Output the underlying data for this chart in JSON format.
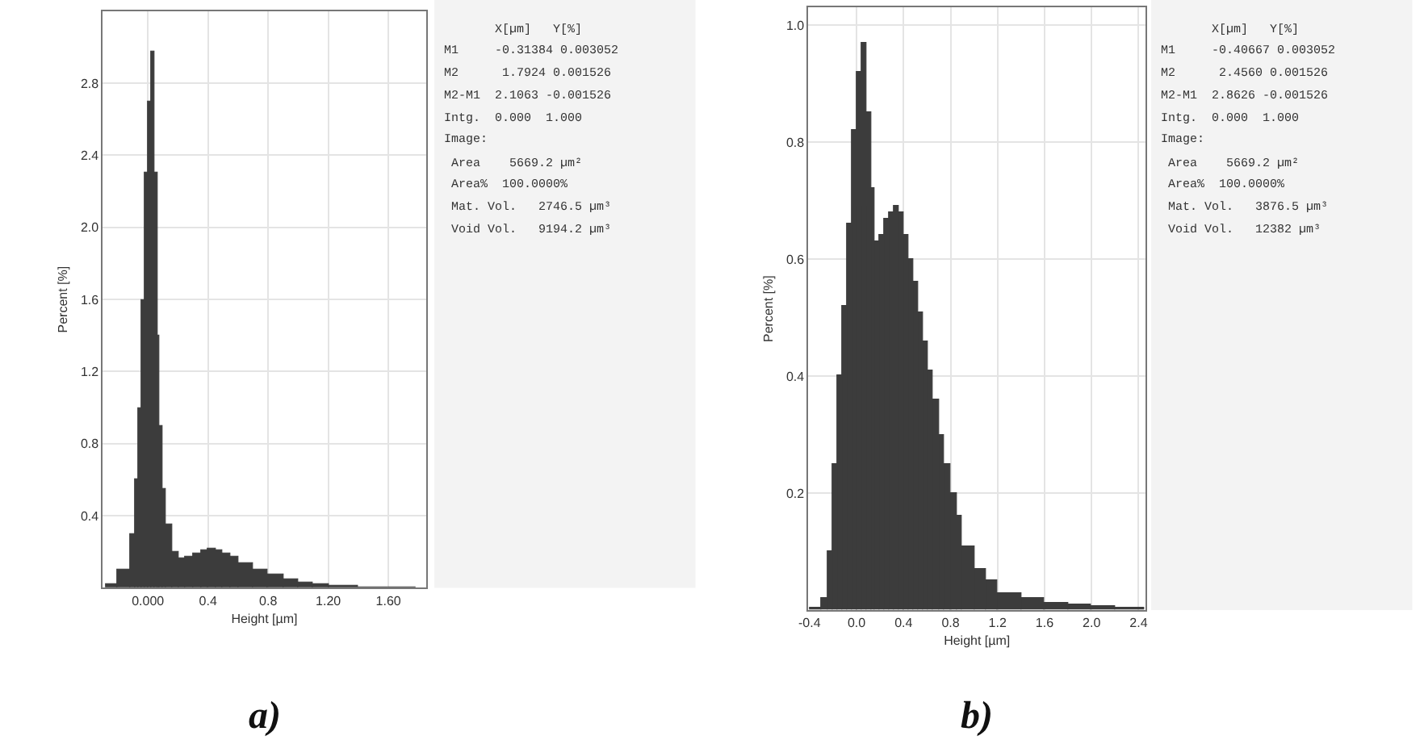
{
  "chart_data": [
    {
      "type": "histogram",
      "title": "a)",
      "xlabel": "Height [µm]",
      "ylabel": "Percent [%]",
      "color": "#3c3c3c",
      "grid": true,
      "bins": [
        -0.28,
        -0.2,
        -0.12,
        -0.08,
        -0.06,
        -0.04,
        -0.02,
        0,
        0.02,
        0.04,
        0.06,
        0.08,
        0.1,
        0.12,
        0.16,
        0.2,
        0.25,
        0.3,
        0.35,
        0.4,
        0.45,
        0.5,
        0.55,
        0.6,
        0.7,
        0.8,
        0.9,
        1.0,
        1.1,
        1.2,
        1.4,
        1.6,
        1.78
      ],
      "values": [
        0.02,
        0.1,
        0.3,
        0.6,
        1.0,
        1.6,
        2.3,
        2.7,
        2.98,
        2.3,
        1.4,
        0.9,
        0.55,
        0.35,
        0.2,
        0.16,
        0.17,
        0.19,
        0.21,
        0.22,
        0.21,
        0.19,
        0.17,
        0.14,
        0.1,
        0.07,
        0.05,
        0.03,
        0.02,
        0.01,
        0.005,
        0.004
      ],
      "xlim": [
        -0.3,
        1.85
      ],
      "ylim": [
        0,
        3.2
      ],
      "xticks": [
        {
          "value": 0,
          "label": "0.000"
        },
        0.4,
        0.8,
        {
          "value": 1.2,
          "label": "1.20"
        },
        {
          "value": 1.6,
          "label": "1.60"
        }
      ],
      "yticks": [
        0.4,
        0.8,
        1.2,
        1.6,
        {
          "value": 2,
          "label": "2.0"
        },
        2.4,
        2.8
      ],
      "annotations": [
        "       X[µm]   Y[%]",
        "M1     -0.31384 0.003052",
        "M2      1.7924 0.001526",
        "M2-M1  2.1063 -0.001526",
        "Intg.  0.000  1.000",
        "Image:",
        " Area    5669.2 µm²",
        " Area%  100.0000%",
        " Mat. Vol.   2746.5 µm³",
        " Void Vol.   9194.2 µm³"
      ]
    },
    {
      "type": "histogram",
      "title": "b)",
      "xlabel": "Height [µm]",
      "ylabel": "Percent [%]",
      "color": "#3c3c3c",
      "grid": true,
      "bins": [
        -0.4,
        -0.3,
        -0.24,
        -0.2,
        -0.16,
        -0.12,
        -0.08,
        -0.04,
        0,
        0.04,
        0.08,
        0.12,
        0.16,
        0.2,
        0.24,
        0.28,
        0.32,
        0.36,
        0.4,
        0.44,
        0.48,
        0.52,
        0.56,
        0.6,
        0.65,
        0.7,
        0.75,
        0.8,
        0.85,
        0.9,
        1.0,
        1.1,
        1.2,
        1.4,
        1.6,
        1.8,
        2.0,
        2.2,
        2.45
      ],
      "values": [
        0.005,
        0.02,
        0.1,
        0.25,
        0.4,
        0.52,
        0.66,
        0.82,
        0.92,
        0.97,
        0.85,
        0.72,
        0.63,
        0.64,
        0.67,
        0.68,
        0.69,
        0.68,
        0.64,
        0.6,
        0.56,
        0.51,
        0.46,
        0.41,
        0.36,
        0.3,
        0.25,
        0.2,
        0.16,
        0.11,
        0.07,
        0.05,
        0.03,
        0.02,
        0.013,
        0.01,
        0.007,
        0.005
      ],
      "xlim": [
        -0.41,
        2.46
      ],
      "ylim": [
        0,
        1.03
      ],
      "xticks": [
        -0.4,
        {
          "value": 0,
          "label": "0.0"
        },
        0.4,
        0.8,
        1.2,
        1.6,
        {
          "value": 2,
          "label": "2.0"
        },
        2.4
      ],
      "yticks": [
        0.2,
        0.4,
        0.6,
        0.8,
        {
          "value": 1,
          "label": "1.0"
        }
      ],
      "annotations": [
        "       X[µm]   Y[%]",
        "M1     -0.40667 0.003052",
        "M2      2.4560 0.001526",
        "M2-M1  2.8626 -0.001526",
        "Intg.  0.000  1.000",
        "Image:",
        " Area    5669.2 µm²",
        " Area%  100.0000%",
        " Mat. Vol.   3876.5 µm³",
        " Void Vol.   12382 µm³"
      ]
    }
  ]
}
